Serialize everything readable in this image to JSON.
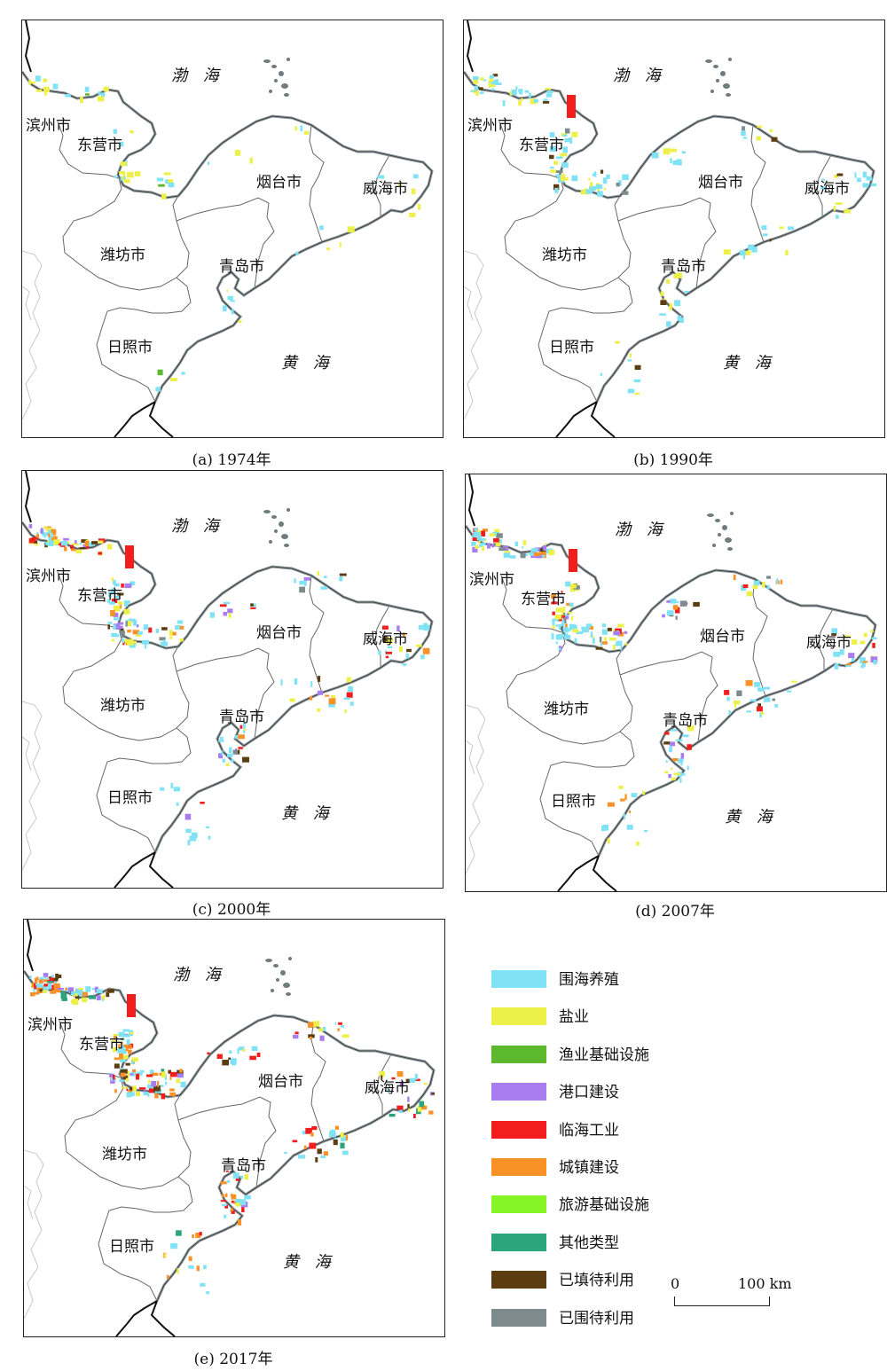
{
  "place_labels": {
    "binzhou": "滨州市",
    "dongying": "东营市",
    "weifang": "潍坊市",
    "yantai": "烟台市",
    "weihai": "威海市",
    "qingdao": "青岛市",
    "rizhao": "日照市"
  },
  "sea_labels": {
    "bohai": "渤 海",
    "huanghai": "黄 海"
  },
  "panels": [
    {
      "caption": "(a)  1974年"
    },
    {
      "caption": "(b)  1990年"
    },
    {
      "caption": "(c)  2000年"
    },
    {
      "caption": "(d)  2007年"
    },
    {
      "caption": "(e)  2017年"
    }
  ],
  "legend": [
    {
      "label": "围海养殖",
      "color": "#7fe3f5"
    },
    {
      "label": "盐业",
      "color": "#eef04a"
    },
    {
      "label": "渔业基础设施",
      "color": "#5cb82c"
    },
    {
      "label": "港口建设",
      "color": "#a97df0"
    },
    {
      "label": "临海工业",
      "color": "#f21d1d"
    },
    {
      "label": "城镇建设",
      "color": "#f99226"
    },
    {
      "label": "旅游基础设施",
      "color": "#86f526"
    },
    {
      "label": "其他类型",
      "color": "#2ca57d"
    },
    {
      "label": "已填待利用",
      "color": "#5b3d11"
    },
    {
      "label": "已围待利用",
      "color": "#7d8b8f"
    }
  ],
  "scale": {
    "zero": "0",
    "distance": "100 km"
  }
}
